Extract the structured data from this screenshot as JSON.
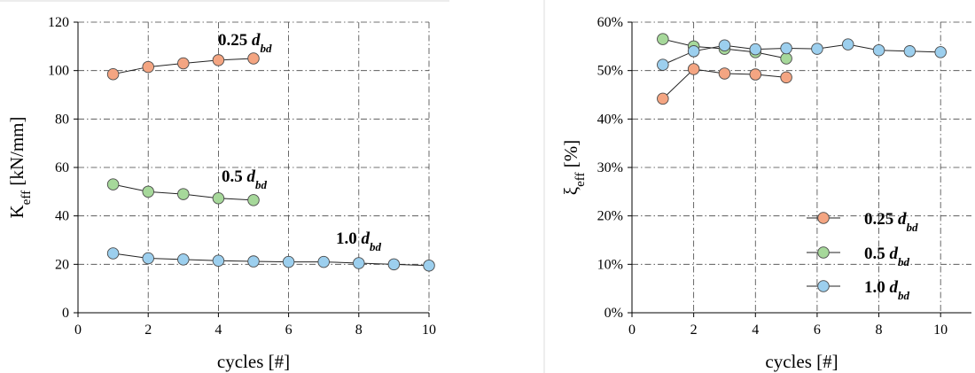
{
  "chart_data": [
    {
      "type": "line",
      "xlabel": "cycles [#]",
      "ylabel_main": "K",
      "ylabel_sub": "eff",
      "ylabel_unit": " [kN/mm]",
      "xlim": [
        0,
        10
      ],
      "ylim": [
        0,
        120
      ],
      "xticks": [
        0,
        2,
        4,
        6,
        8,
        10
      ],
      "yticks": [
        0,
        20,
        40,
        60,
        80,
        100,
        120
      ],
      "ytick_labels": [
        "0",
        "20",
        "40",
        "60",
        "80",
        "100",
        "120"
      ],
      "grid": true,
      "series": [
        {
          "name": "0.25 d_bd",
          "color": "#F4A582",
          "x": [
            1,
            2,
            3,
            4,
            5
          ],
          "y": [
            98.5,
            101.5,
            103,
            104.3,
            105
          ]
        },
        {
          "name": "0.5 d_bd",
          "color": "#A6D89A",
          "x": [
            1,
            2,
            3,
            4,
            5
          ],
          "y": [
            53,
            50,
            49,
            47.3,
            46.5
          ]
        },
        {
          "name": "1.0 d_bd",
          "color": "#9CCFEE",
          "x": [
            1,
            2,
            3,
            4,
            5,
            6,
            7,
            8,
            9,
            10
          ],
          "y": [
            24.5,
            22.5,
            22,
            21.5,
            21.2,
            21,
            21,
            20.5,
            20,
            19.5
          ]
        }
      ],
      "annotations": [
        {
          "value": "0.25",
          "sym": "d",
          "sub": "bd"
        },
        {
          "value": "0.5",
          "sym": "d",
          "sub": "bd"
        },
        {
          "value": "1.0",
          "sym": "d",
          "sub": "bd"
        }
      ]
    },
    {
      "type": "line",
      "xlabel": "cycles [#]",
      "ylabel_main": "ξ",
      "ylabel_sub": "eff",
      "ylabel_unit": " [%]",
      "xlim": [
        0,
        11
      ],
      "ylim": [
        0,
        60
      ],
      "xticks": [
        0,
        2,
        4,
        6,
        8,
        10
      ],
      "yticks": [
        0,
        10,
        20,
        30,
        40,
        50,
        60
      ],
      "ytick_labels": [
        "0%",
        "10%",
        "20%",
        "30%",
        "40%",
        "50%",
        "60%"
      ],
      "grid": true,
      "legend": "bottom-right",
      "series": [
        {
          "name": "0.25 d_bd",
          "color": "#F4A582",
          "x": [
            1,
            2,
            3,
            4,
            5
          ],
          "y": [
            44.2,
            50.3,
            49.4,
            49.2,
            48.6
          ]
        },
        {
          "name": "0.5 d_bd",
          "color": "#A6D89A",
          "x": [
            1,
            2,
            3,
            4,
            5
          ],
          "y": [
            56.5,
            55,
            54.5,
            53.8,
            52.5
          ]
        },
        {
          "name": "1.0 d_bd",
          "color": "#9CCFEE",
          "x": [
            1,
            2,
            3,
            4,
            5,
            6,
            7,
            8,
            9,
            10
          ],
          "y": [
            51.2,
            54,
            55.2,
            54.4,
            54.6,
            54.5,
            55.4,
            54.2,
            54,
            53.8
          ]
        }
      ],
      "legend_entries": [
        {
          "value": "0.25",
          "sym": "d",
          "sub": "bd"
        },
        {
          "value": "0.5",
          "sym": "d",
          "sub": "bd"
        },
        {
          "value": "1.0",
          "sym": "d",
          "sub": "bd"
        }
      ]
    }
  ]
}
